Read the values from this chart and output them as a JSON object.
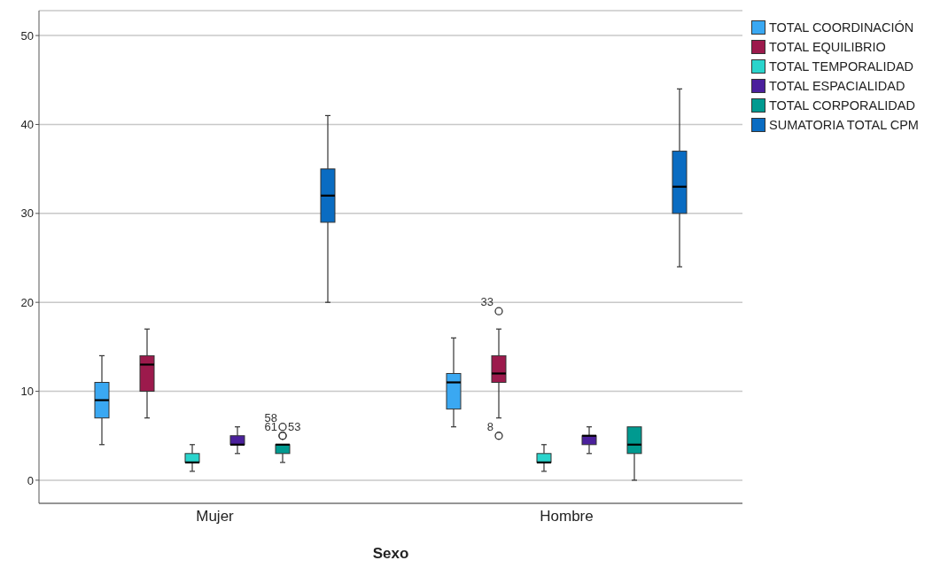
{
  "chart_data": {
    "type": "box",
    "xlabel": "Sexo",
    "categories": [
      "Mujer",
      "Hombre"
    ],
    "ylim": [
      -2.6,
      52.8
    ],
    "yticks": [
      0,
      10,
      20,
      30,
      40,
      50
    ],
    "grid": "y",
    "legend": "top right",
    "series": [
      {
        "name": "TOTAL COORDINACIÓN",
        "color": "#3aa8f2",
        "boxes": [
          {
            "low": 4,
            "q1": 7,
            "median": 9,
            "q3": 11,
            "high": 14
          },
          {
            "low": 6,
            "q1": 8,
            "median": 11,
            "q3": 12,
            "high": 16
          }
        ]
      },
      {
        "name": "TOTAL EQUILIBRIO",
        "color": "#9c1a4c",
        "boxes": [
          {
            "low": 7,
            "q1": 10,
            "median": 13,
            "q3": 14,
            "high": 17
          },
          {
            "low": 7,
            "q1": 11,
            "median": 12,
            "q3": 14,
            "high": 17,
            "outliers": [
              19,
              5
            ]
          }
        ]
      },
      {
        "name": "TOTAL TEMPORALIDAD",
        "color": "#2ad4cc",
        "boxes": [
          {
            "low": 1,
            "q1": 2,
            "median": 2,
            "q3": 3,
            "high": 4
          },
          {
            "low": 1,
            "q1": 2,
            "median": 2,
            "q3": 3,
            "high": 4
          }
        ]
      },
      {
        "name": "TOTAL ESPACIALIDAD",
        "color": "#4b209c",
        "boxes": [
          {
            "low": 3,
            "q1": 4,
            "median": 4,
            "q3": 5,
            "high": 6
          },
          {
            "low": 3,
            "q1": 4,
            "median": 5,
            "q3": 5,
            "high": 6
          }
        ]
      },
      {
        "name": "TOTAL CORPORALIDAD",
        "color": "#009a90",
        "boxes": [
          {
            "low": 2,
            "q1": 3,
            "median": 4,
            "q3": 4,
            "high": 4,
            "outliers": [
              5,
              5,
              6
            ]
          },
          {
            "low": 0,
            "q1": 3,
            "median": 4,
            "q3": 6,
            "high": 6
          }
        ]
      },
      {
        "name": "SUMATORIA TOTAL CPM",
        "color": "#0a6cc2",
        "boxes": [
          {
            "low": 20,
            "q1": 29,
            "median": 32,
            "q3": 35,
            "high": 41
          },
          {
            "low": 24,
            "q1": 30,
            "median": 33,
            "q3": 37,
            "high": 44
          }
        ]
      }
    ],
    "annotations": [
      "33",
      "8",
      "61",
      "53",
      "58"
    ]
  }
}
